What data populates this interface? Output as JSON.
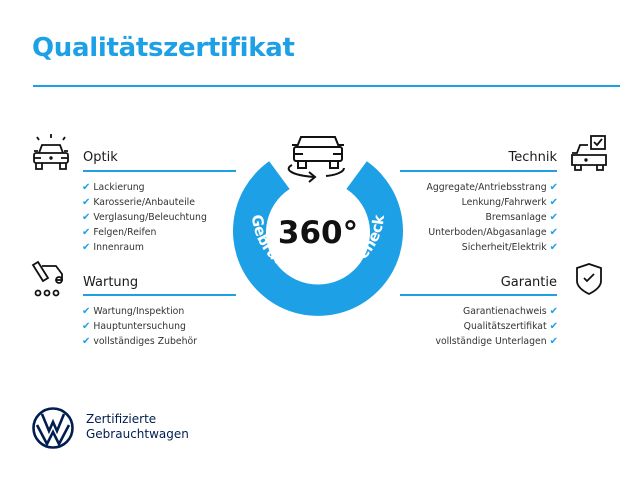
{
  "title": "Qualitätszertifikat",
  "colors": {
    "accent": "#1ea0e6",
    "brand": "#001e50"
  },
  "badge": {
    "center_text": "360°",
    "ring_text": "Gebrauchtwagen-Check",
    "icon": "car-rotate-icon"
  },
  "sections": {
    "optik": {
      "heading": "Optik",
      "icon": "car-shine-icon",
      "items": [
        "Lackierung",
        "Karosserie/Anbauteile",
        "Verglasung/Beleuchtung",
        "Felgen/Reifen",
        "Innenraum"
      ]
    },
    "wartung": {
      "heading": "Wartung",
      "icon": "service-truck-icon",
      "items": [
        "Wartung/Inspektion",
        "Hauptuntersuchung",
        "vollständiges Zubehör"
      ]
    },
    "technik": {
      "heading": "Technik",
      "icon": "car-checkbox-icon",
      "items": [
        "Aggregate/Antriebsstrang",
        "Lenkung/Fahrwerk",
        "Bremsanlage",
        "Unterboden/Abgasanlage",
        "Sicherheit/Elektrik"
      ]
    },
    "garantie": {
      "heading": "Garantie",
      "icon": "shield-check-icon",
      "items": [
        "Garantienachweis",
        "Qualitätszertifikat",
        "vollständige Unterlagen"
      ]
    }
  },
  "check_glyph": "✔",
  "footer": {
    "line1": "Zertifizierte",
    "line2": "Gebrauchtwagen",
    "logo": "vw-logo"
  }
}
